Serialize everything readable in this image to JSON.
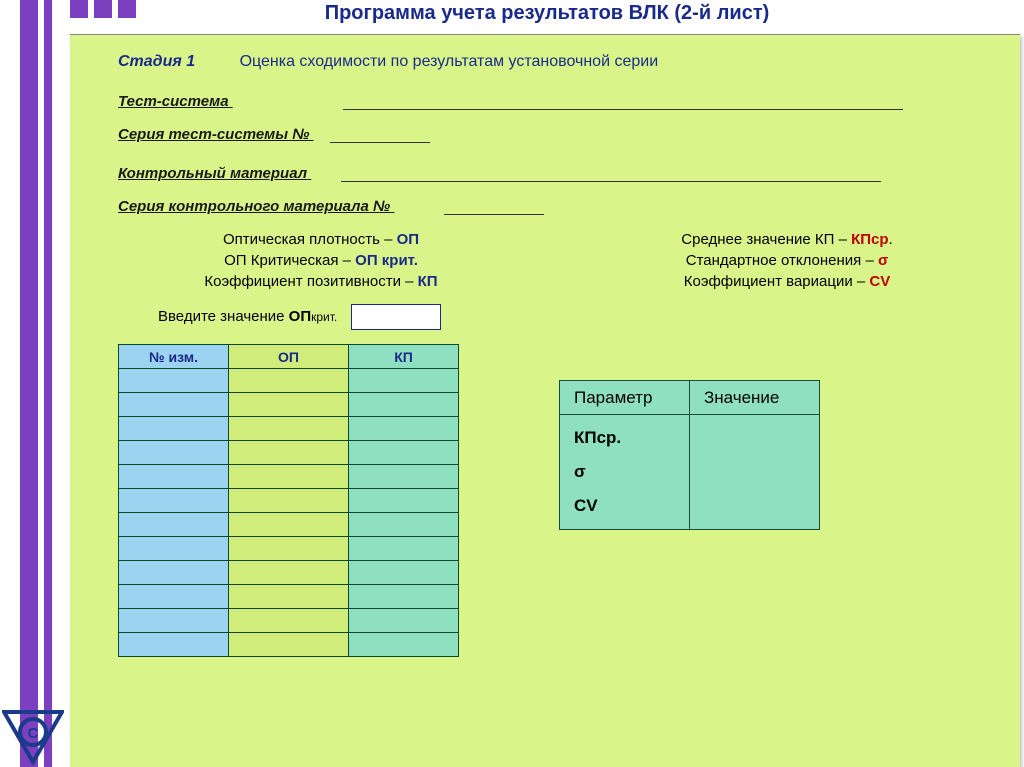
{
  "title": "Программа учета результатов ВЛК (2-й лист)",
  "stage": {
    "label": "Стадия 1",
    "text": "Оценка сходимости по результатам установочной серии"
  },
  "form": {
    "test_system": "Тест-система",
    "test_series": "Серия тест-системы №",
    "control_material": "Контрольный материал",
    "control_series": "Серия контрольного материала №"
  },
  "legend": {
    "left": [
      {
        "text": "Оптическая плотность – ",
        "abbr": "ОП",
        "cls": "abbr-blue"
      },
      {
        "text": "ОП Критическая – ",
        "abbr": "ОП крит.",
        "cls": "abbr-blue"
      },
      {
        "text": "Коэффициент позитивности – ",
        "abbr": "КП",
        "cls": "abbr-blue"
      }
    ],
    "right": [
      {
        "text": "Среднее значение КП – ",
        "abbr": "КПср",
        "cls": "abbr-red",
        "suffix": "."
      },
      {
        "text": "Стандартное отклонения – ",
        "abbr": "σ",
        "cls": "abbr-red"
      },
      {
        "text": "Коэффициент вариации – ",
        "abbr": "CV",
        "cls": "abbr-red"
      }
    ]
  },
  "input": {
    "label_pre": "Введите  значение ",
    "label_bold": "ОП",
    "label_sub": "крит."
  },
  "data_table": {
    "columns": [
      "№ изм.",
      "ОП",
      "КП"
    ],
    "col_colors": [
      "#9cd3f0",
      "#d0ec7a",
      "#8ee0c0"
    ],
    "row_count": 12,
    "border_color": "#0a4a2a"
  },
  "params_table": {
    "headers": [
      "Параметр",
      "Значение"
    ],
    "rows": [
      "КПср.",
      "σ",
      "CV"
    ],
    "bg_color": "#8ee0c0",
    "border_color": "#1a4a3a"
  },
  "colors": {
    "page_bg": "#d9f58a",
    "accent_purple": "#7b3fbf",
    "text_blue": "#1a2a8a",
    "text_red": "#c00000"
  }
}
